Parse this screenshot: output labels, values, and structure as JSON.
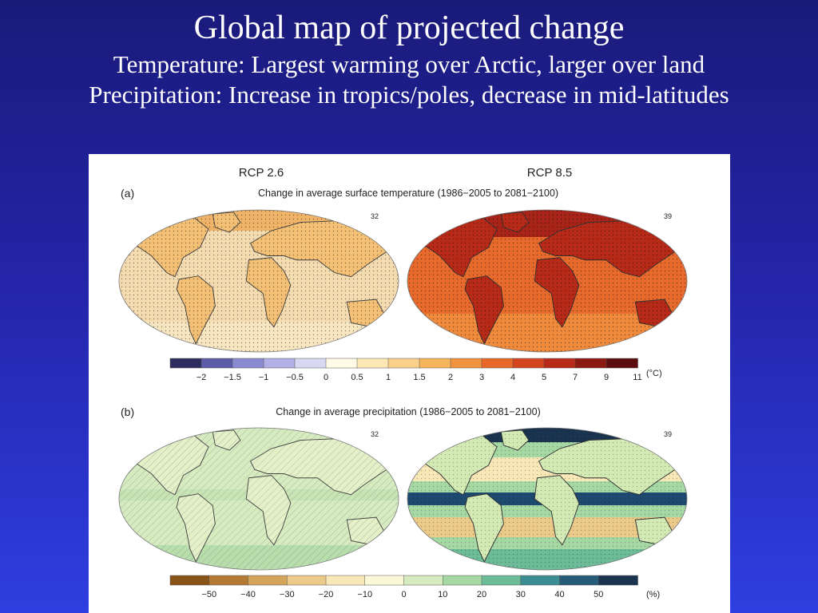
{
  "slide": {
    "title": "Global map of projected change",
    "lines": [
      "Temperature: Largest warming over Arctic, larger over land",
      "Precipitation: Increase in tropics/poles, decrease in mid-latitudes"
    ]
  },
  "figure": {
    "scenarios": [
      "RCP 2.6",
      "RCP 8.5"
    ],
    "panel_a": {
      "label": "(a)",
      "title": "Change in average surface temperature (1986−2005 to 2081−2100)",
      "model_counts": [
        "32",
        "39"
      ],
      "unit": "(°C)",
      "colorbar": {
        "ticks": [
          "−2",
          "−1.5",
          "−1",
          "−0.5",
          "0",
          "0.5",
          "1",
          "1.5",
          "2",
          "3",
          "4",
          "5",
          "7",
          "9",
          "11"
        ],
        "colors": [
          "#2c2c5e",
          "#5b5ba8",
          "#8a8ad0",
          "#b0b0e4",
          "#d8d8f2",
          "#fffbe6",
          "#fde8b4",
          "#fad18a",
          "#f6b45c",
          "#f0923e",
          "#e8682a",
          "#d4441e",
          "#b82a18",
          "#8c1812",
          "#5c0c0c"
        ]
      }
    },
    "panel_b": {
      "label": "(b)",
      "title": "Change in average precipitation (1986−2005 to 2081−2100)",
      "model_counts": [
        "32",
        "39"
      ],
      "unit": "(%)",
      "colorbar": {
        "ticks": [
          "−50",
          "−40",
          "−30",
          "−20",
          "−10",
          "0",
          "10",
          "20",
          "30",
          "40",
          "50"
        ],
        "colors": [
          "#8a5418",
          "#b47a34",
          "#d4a45a",
          "#ecca8a",
          "#f8e8b8",
          "#fbf8d8",
          "#d6ecc0",
          "#a6d8a4",
          "#6cbc98",
          "#3c8c94",
          "#265c78",
          "#1a3450"
        ]
      }
    },
    "colors": {
      "rcp26_temp_ocean": "#f5dcb0",
      "rcp26_temp_land": "#f3c076",
      "rcp85_temp_ocean": "#e86a2c",
      "rcp85_temp_land": "#b82a18",
      "rcp26_precip": "#d6ecc0",
      "rcp85_precip": "#a6d8a4"
    }
  }
}
